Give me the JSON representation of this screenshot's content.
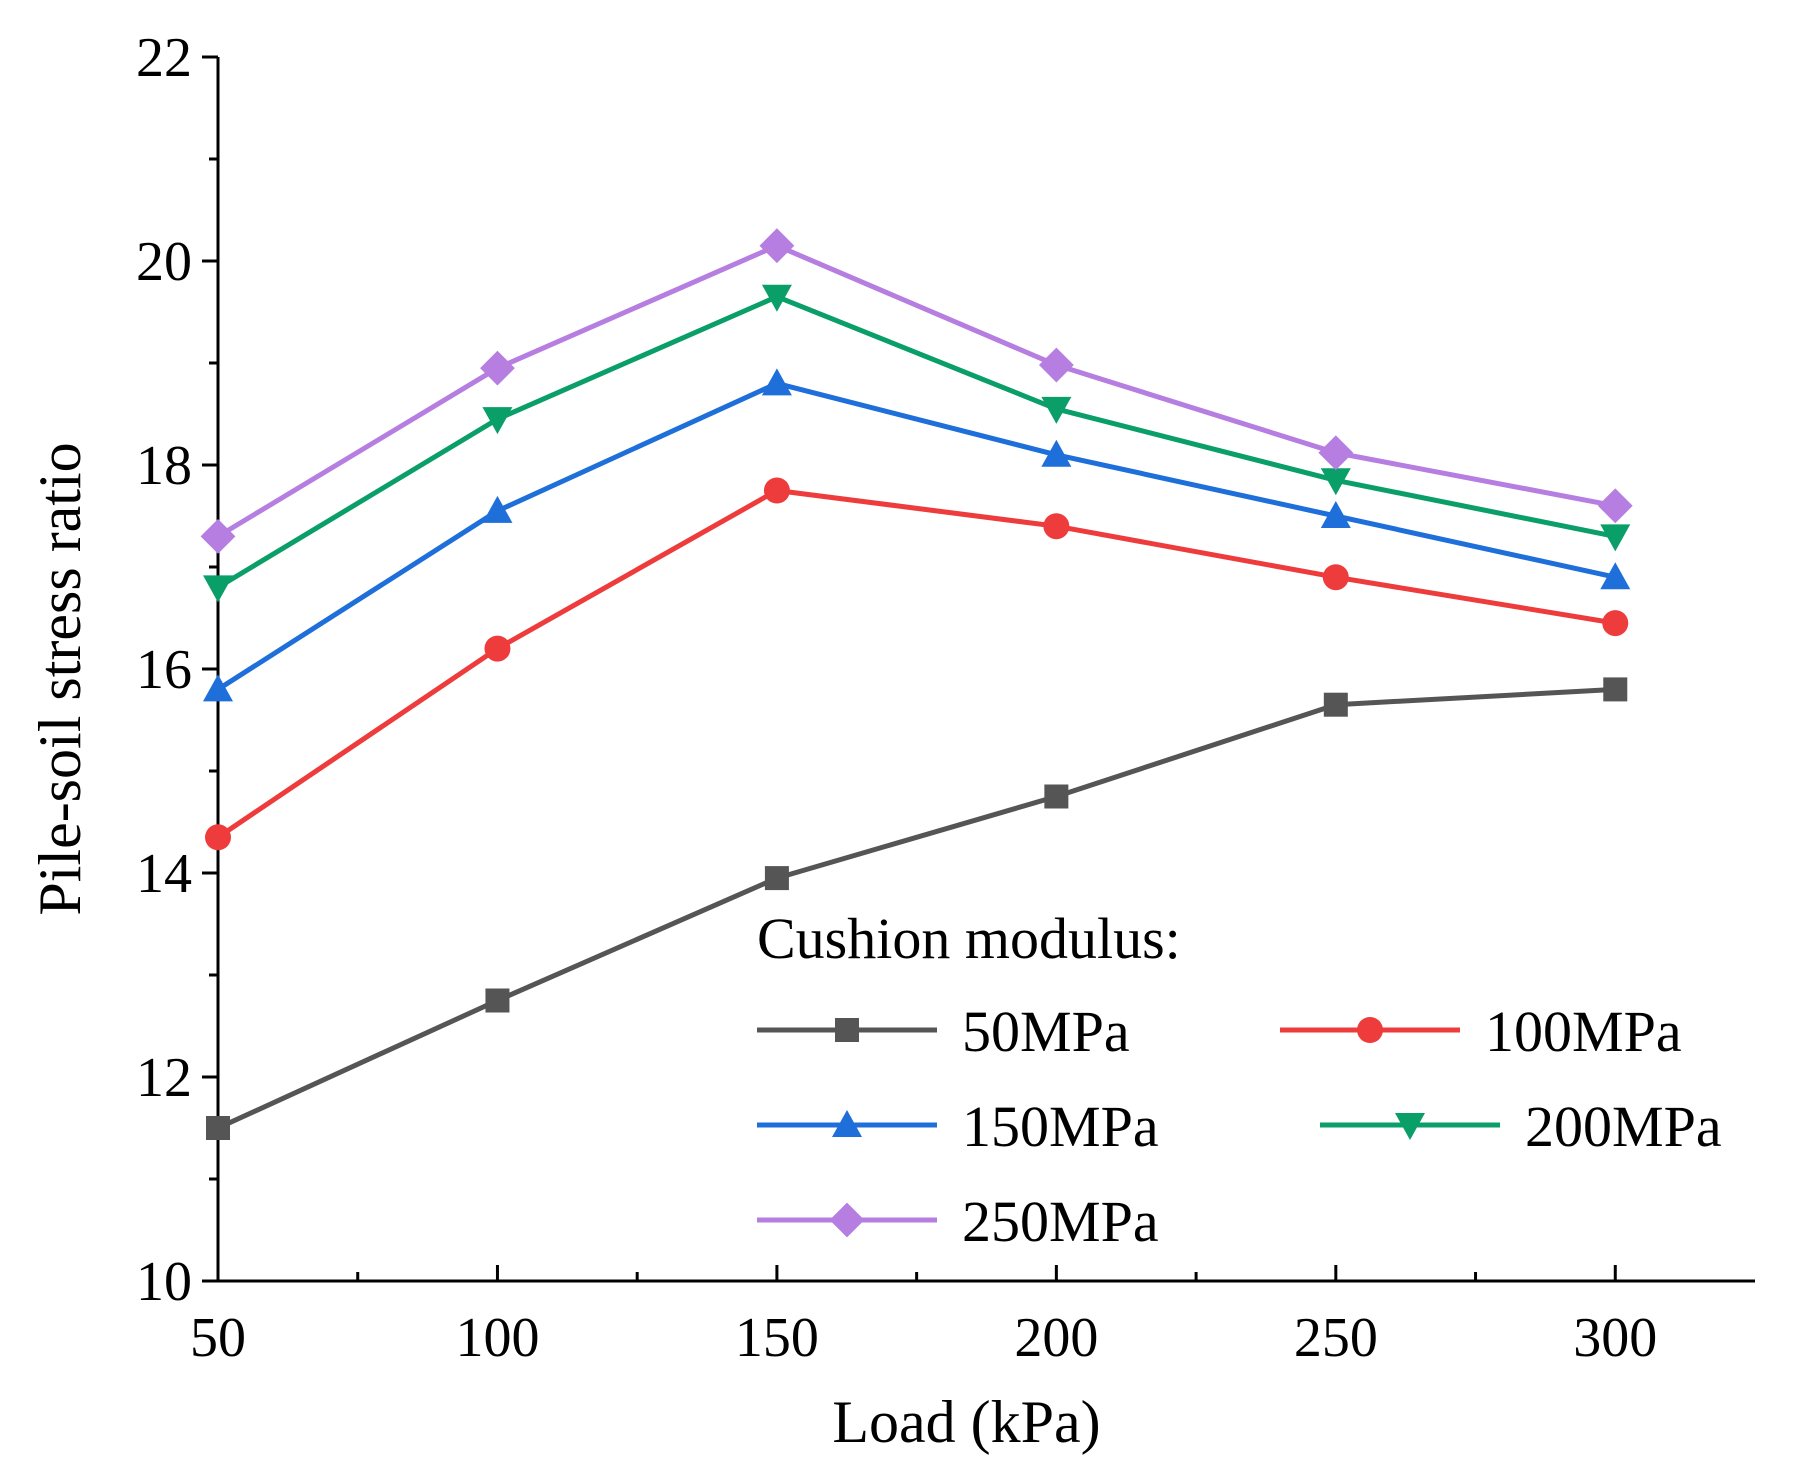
{
  "chart_data": {
    "type": "line",
    "x": [
      50,
      100,
      150,
      200,
      250,
      300
    ],
    "xlabel": "Load (kPa)",
    "ylabel": "Pile-soil stress ratio",
    "xlim": [
      50,
      325
    ],
    "ylim": [
      10,
      22
    ],
    "xticks": [
      50,
      100,
      150,
      200,
      250,
      300
    ],
    "yticks": [
      10,
      12,
      14,
      16,
      18,
      20,
      22
    ],
    "grid": false,
    "legend_title": "Cushion modulus:",
    "legend_position": "bottom-right",
    "series": [
      {
        "name": "50MPa",
        "color": "#555555",
        "marker": "square",
        "values": [
          11.5,
          12.75,
          13.95,
          14.75,
          15.65,
          15.8
        ]
      },
      {
        "name": "100MPa",
        "color": "#ee3b3b",
        "marker": "circle",
        "values": [
          14.35,
          16.2,
          17.75,
          17.4,
          16.9,
          16.45
        ]
      },
      {
        "name": "150MPa",
        "color": "#1e6fd9",
        "marker": "triangle-up",
        "values": [
          15.8,
          17.55,
          18.8,
          18.1,
          17.5,
          16.9
        ]
      },
      {
        "name": "200MPa",
        "color": "#0a9e68",
        "marker": "triangle-down",
        "values": [
          16.8,
          18.45,
          19.65,
          18.55,
          17.85,
          17.3
        ]
      },
      {
        "name": "250MPa",
        "color": "#b57ee0",
        "marker": "diamond",
        "values": [
          17.3,
          18.95,
          20.15,
          18.98,
          18.12,
          17.6
        ]
      }
    ]
  }
}
